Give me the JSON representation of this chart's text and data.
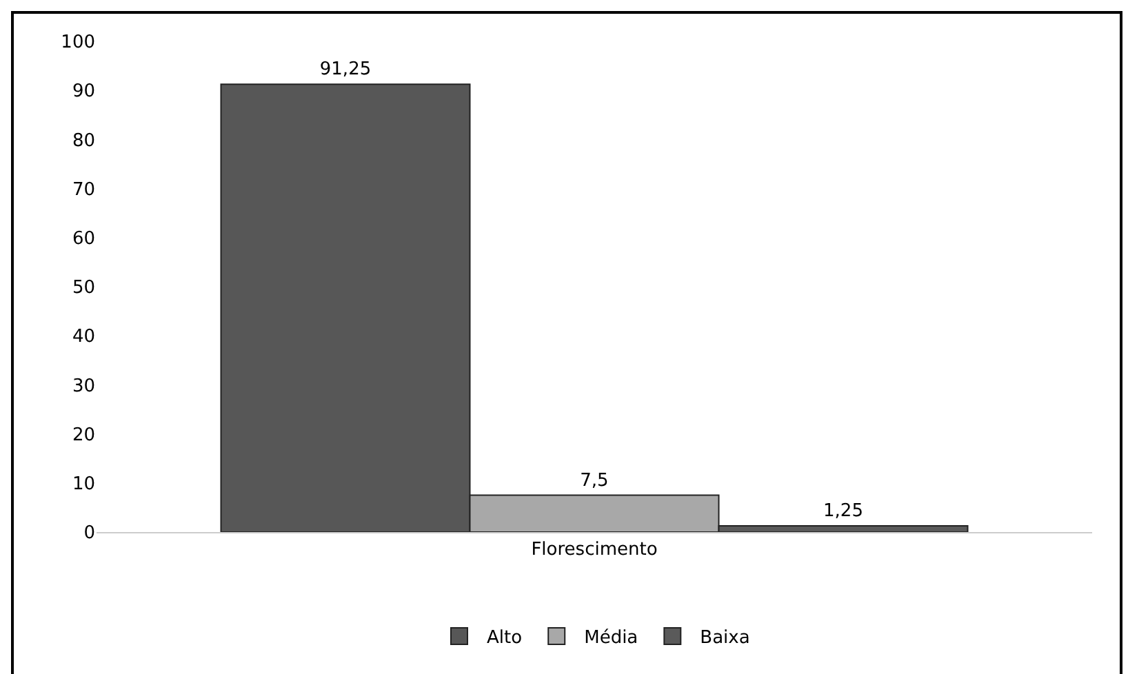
{
  "chart_data": {
    "type": "bar",
    "categories": [
      "Florescimento"
    ],
    "series": [
      {
        "name": "Alto",
        "color": "#575757",
        "values": [
          91.25
        ],
        "value_labels": [
          "91,25"
        ]
      },
      {
        "name": "Média",
        "color": "#a8a8a8",
        "values": [
          7.5
        ],
        "value_labels": [
          "7,5"
        ]
      },
      {
        "name": "Baixa",
        "color": "#5a5a5a",
        "values": [
          1.25
        ],
        "value_labels": [
          "1,25"
        ]
      }
    ],
    "ylim": [
      0,
      100
    ],
    "yticks": [
      0,
      10,
      20,
      30,
      40,
      50,
      60,
      70,
      80,
      90,
      100
    ],
    "grid": false,
    "legend": "bottom"
  }
}
